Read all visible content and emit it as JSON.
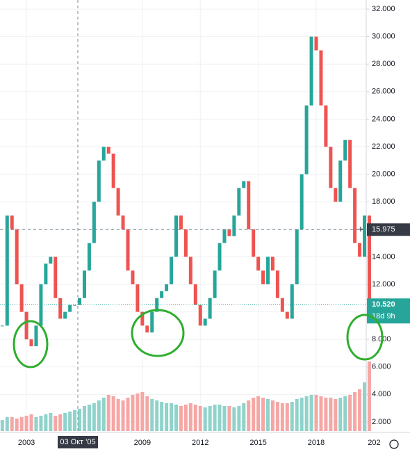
{
  "chart_data": {
    "type": "candlestick",
    "x": [
      2001.75,
      2002,
      2002.25,
      2002.5,
      2002.75,
      2003,
      2003.25,
      2003.5,
      2003.75,
      2004,
      2004.25,
      2004.5,
      2004.75,
      2005,
      2005.25,
      2005.5,
      2005.75,
      2006,
      2006.25,
      2006.5,
      2006.75,
      2007,
      2007.25,
      2007.5,
      2007.75,
      2008,
      2008.25,
      2008.5,
      2008.75,
      2009,
      2009.25,
      2009.5,
      2009.75,
      2010,
      2010.25,
      2010.5,
      2010.75,
      2011,
      2011.25,
      2011.5,
      2011.75,
      2012,
      2012.25,
      2012.5,
      2012.75,
      2013,
      2013.25,
      2013.5,
      2013.75,
      2014,
      2014.25,
      2014.5,
      2014.75,
      2015,
      2015.25,
      2015.5,
      2015.75,
      2016,
      2016.25,
      2016.5,
      2016.75,
      2017,
      2017.25,
      2017.5,
      2017.75,
      2018,
      2018.25,
      2018.5,
      2018.75,
      2019,
      2019.25,
      2019.5,
      2019.75,
      2020,
      2020.25,
      2020.5,
      2020.75
    ],
    "series": [
      {
        "name": "price",
        "up_color": "#26a69a",
        "down_color": "#ef5350",
        "values": [
          9,
          17,
          16,
          12,
          10,
          8,
          7.5,
          9,
          12,
          13.5,
          14,
          11,
          9.5,
          10,
          10.5,
          10.5,
          11,
          13,
          15,
          18,
          21,
          22,
          21.5,
          19,
          17,
          16,
          13,
          12,
          10,
          9,
          8.5,
          10,
          11,
          11.5,
          12,
          14,
          17,
          16,
          14,
          12,
          10.5,
          9,
          9.5,
          11,
          13,
          15,
          16,
          15.5,
          17,
          19,
          19.5,
          16,
          14,
          13,
          12,
          14,
          13,
          11,
          10,
          9.5,
          12,
          16,
          20,
          25,
          30,
          29,
          25,
          22,
          19,
          18,
          21,
          22.5,
          19,
          15,
          14,
          17,
          10.52
        ]
      },
      {
        "name": "volume",
        "up_color": "#8fd3cb",
        "down_color": "#f5a7a5",
        "values": [
          0.8,
          1,
          1,
          0.9,
          1,
          1.1,
          1.2,
          1,
          1.1,
          1.2,
          1.3,
          1.1,
          1.2,
          1.3,
          1.4,
          1.5,
          1.6,
          1.8,
          1.9,
          2,
          2.2,
          2.4,
          2.6,
          2.5,
          2.3,
          2.2,
          2.4,
          2.6,
          2.7,
          2.8,
          2.5,
          2.3,
          2.2,
          2.1,
          2,
          2,
          1.9,
          1.8,
          1.9,
          2,
          1.9,
          1.8,
          1.7,
          1.8,
          1.9,
          1.9,
          1.8,
          1.8,
          1.7,
          1.8,
          2,
          2.2,
          2.4,
          2.5,
          2.4,
          2.3,
          2.2,
          2.1,
          2,
          2,
          2.1,
          2.3,
          2.4,
          2.5,
          2.6,
          2.6,
          2.5,
          2.4,
          2.4,
          2.3,
          2.4,
          2.5,
          2.6,
          2.8,
          3,
          3.5,
          5
        ]
      }
    ],
    "ylim": [
      1.34,
      32.66
    ],
    "xlim": [
      2001.63,
      2020.59
    ],
    "yticks": [
      {
        "value": 2,
        "label": "2.000"
      },
      {
        "value": 4,
        "label": "4.000"
      },
      {
        "value": 6,
        "label": "6.000"
      },
      {
        "value": 8,
        "label": "8.000"
      },
      {
        "value": 10,
        "label": "10.000"
      },
      {
        "value": 12,
        "label": "12.000"
      },
      {
        "value": 14,
        "label": "14.000"
      },
      {
        "value": 16,
        "label": "16.000"
      },
      {
        "value": 18,
        "label": "18.000"
      },
      {
        "value": 20,
        "label": "20.000"
      },
      {
        "value": 22,
        "label": "22.000"
      },
      {
        "value": 24,
        "label": "24.000"
      },
      {
        "value": 26,
        "label": "26.000"
      },
      {
        "value": 28,
        "label": "28.000"
      },
      {
        "value": 30,
        "label": "30.000"
      },
      {
        "value": 32,
        "label": "32.000"
      }
    ],
    "xticks": [
      2003,
      2009,
      2012,
      2015,
      2018,
      {
        "value": 2021,
        "label": "202"
      }
    ],
    "crosshair": {
      "x": 2005.66,
      "x_label": "03 Окт '05",
      "y": 15.975,
      "y_label": "15.975"
    },
    "last_price": {
      "value": 10.52,
      "label": "10.520",
      "countdown": "18d 9h"
    },
    "grid": true
  }
}
